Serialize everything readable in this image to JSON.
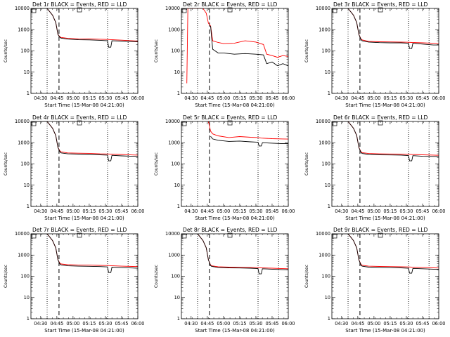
{
  "chart_data": [
    {
      "type": "line",
      "title": "Det 1r BLACK = Events, RED = LLD",
      "xlabel": "Start Time (15-Mar-08 04:21:00)",
      "ylabel": "Counts/sec",
      "yscale": "log",
      "ylim": [
        1,
        10000
      ],
      "xlim": [
        "04:21",
        "06:00"
      ],
      "xticks": [
        "04:30",
        "04:45",
        "05:00",
        "05:15",
        "05:30",
        "05:45",
        "06:00"
      ],
      "yticks": [
        "1",
        "10",
        "100",
        "1000",
        "10000"
      ],
      "legend": "none",
      "colors": {
        "events": "#000000",
        "lld": "#ff0000"
      },
      "series": [
        {
          "name": "BLACK = Events",
          "x": [
            "04:26",
            "04:36",
            "04:41",
            "04:44",
            "04:46",
            "04:48",
            "04:49",
            "04:55",
            "05:05",
            "05:15",
            "05:25",
            "05:32",
            "05:33",
            "05:35",
            "05:36",
            "05:45",
            "05:55",
            "06:00"
          ],
          "y": [
            10000,
            10000,
            4800,
            2200,
            600,
            420,
            400,
            360,
            335,
            330,
            315,
            300,
            150,
            150,
            300,
            290,
            280,
            270
          ]
        },
        {
          "name": "RED = LLD",
          "x": [
            "04:26",
            "04:36",
            "04:41",
            "04:44",
            "04:46",
            "04:48",
            "04:49",
            "04:55",
            "05:05",
            "05:15",
            "05:25",
            "05:32",
            "05:35",
            "05:45",
            "05:55",
            "06:00"
          ],
          "y": [
            10000,
            10000,
            4800,
            2200,
            600,
            450,
            430,
            390,
            370,
            365,
            355,
            345,
            340,
            320,
            300,
            290
          ]
        }
      ]
    },
    {
      "type": "line",
      "title": "Det 2r BLACK = Events, RED = LLD",
      "xlabel": "Start Time (15-Mar-08 04:21:00)",
      "ylabel": "Counts/sec",
      "yscale": "log",
      "ylim": [
        1,
        10000
      ],
      "xlim": [
        "04:21",
        "06:00"
      ],
      "xticks": [
        "04:30",
        "04:45",
        "05:00",
        "05:15",
        "05:30",
        "05:45",
        "06:00"
      ],
      "yticks": [
        "1",
        "10",
        "100",
        "1000",
        "10000"
      ],
      "legend": "none",
      "colors": {
        "events": "#000000",
        "lld": "#ff0000"
      },
      "series": [
        {
          "name": "BLACK = Events",
          "x": [
            "04:48",
            "04:50",
            "04:55",
            "05:00",
            "05:10",
            "05:20",
            "05:30",
            "05:37",
            "05:40",
            "05:45",
            "05:50",
            "05:55",
            "06:00"
          ],
          "y": [
            1500,
            120,
            80,
            80,
            70,
            75,
            70,
            65,
            25,
            30,
            20,
            25,
            20
          ]
        },
        {
          "name": "RED = LLD",
          "x": [
            "04:26",
            "04:27",
            "04:28",
            "04:29",
            "04:36",
            "04:41",
            "04:44",
            "04:46",
            "04:48",
            "04:50",
            "04:55",
            "05:00",
            "05:10",
            "05:20",
            "05:30",
            "05:37",
            "05:40",
            "05:45",
            "05:50",
            "05:55",
            "06:00"
          ],
          "y": [
            3,
            10000,
            10000,
            10000,
            10000,
            10000,
            6000,
            2000,
            1500,
            300,
            250,
            220,
            230,
            300,
            260,
            200,
            70,
            60,
            50,
            60,
            55
          ]
        }
      ]
    },
    {
      "type": "line",
      "title": "Det 3r BLACK = Events, RED = LLD",
      "xlabel": "Start Time (15-Mar-08 04:21:00)",
      "ylabel": "Counts/sec",
      "yscale": "log",
      "ylim": [
        1,
        10000
      ],
      "xlim": [
        "04:21",
        "06:00"
      ],
      "xticks": [
        "04:30",
        "04:45",
        "05:00",
        "05:15",
        "05:30",
        "05:45",
        "06:00"
      ],
      "yticks": [
        "1",
        "10",
        "100",
        "1000",
        "10000"
      ],
      "legend": "none",
      "colors": {
        "events": "#000000",
        "lld": "#ff0000"
      },
      "series": [
        {
          "name": "BLACK = Events",
          "x": [
            "04:26",
            "04:36",
            "04:41",
            "04:44",
            "04:46",
            "04:48",
            "04:49",
            "04:55",
            "05:05",
            "05:15",
            "05:25",
            "05:32",
            "05:33",
            "05:35",
            "05:36",
            "05:45",
            "05:55",
            "06:00"
          ],
          "y": [
            10000,
            10000,
            4800,
            2200,
            600,
            340,
            300,
            260,
            245,
            240,
            240,
            230,
            130,
            130,
            230,
            210,
            190,
            190
          ]
        },
        {
          "name": "RED = LLD",
          "x": [
            "04:26",
            "04:36",
            "04:41",
            "04:44",
            "04:46",
            "04:48",
            "04:49",
            "04:55",
            "05:05",
            "05:15",
            "05:25",
            "05:32",
            "05:35",
            "05:45",
            "05:55",
            "06:00"
          ],
          "y": [
            10000,
            10000,
            4800,
            2200,
            600,
            360,
            330,
            280,
            270,
            265,
            260,
            255,
            250,
            240,
            230,
            220
          ]
        }
      ]
    },
    {
      "type": "line",
      "title": "Det 4r BLACK = Events, RED = LLD",
      "xlabel": "Start Time (15-Mar-08 04:21:00)",
      "ylabel": "Counts/sec",
      "yscale": "log",
      "ylim": [
        1,
        10000
      ],
      "xlim": [
        "04:21",
        "06:00"
      ],
      "xticks": [
        "04:30",
        "04:45",
        "05:00",
        "05:15",
        "05:30",
        "05:45",
        "06:00"
      ],
      "yticks": [
        "1",
        "10",
        "100",
        "1000",
        "10000"
      ],
      "legend": "none",
      "colors": {
        "events": "#000000",
        "lld": "#ff0000"
      },
      "series": [
        {
          "name": "BLACK = Events",
          "x": [
            "04:26",
            "04:36",
            "04:41",
            "04:44",
            "04:46",
            "04:48",
            "04:49",
            "04:55",
            "05:05",
            "05:15",
            "05:25",
            "05:32",
            "05:33",
            "05:35",
            "05:36",
            "05:45",
            "05:55",
            "06:00"
          ],
          "y": [
            10000,
            10000,
            4800,
            2200,
            600,
            360,
            330,
            300,
            290,
            280,
            270,
            260,
            140,
            140,
            255,
            240,
            230,
            230
          ]
        },
        {
          "name": "RED = LLD",
          "x": [
            "04:26",
            "04:36",
            "04:41",
            "04:44",
            "04:46",
            "04:48",
            "04:49",
            "04:55",
            "05:05",
            "05:15",
            "05:25",
            "05:32",
            "05:35",
            "05:45",
            "05:55",
            "06:00"
          ],
          "y": [
            10000,
            10000,
            4800,
            2200,
            600,
            400,
            370,
            330,
            320,
            315,
            300,
            295,
            290,
            280,
            265,
            260
          ]
        }
      ]
    },
    {
      "type": "line",
      "title": "Det 5r BLACK = Events, RED = LLD",
      "xlabel": "Start Time (15-Mar-08 04:21:00)",
      "ylabel": "Counts/sec",
      "yscale": "log",
      "ylim": [
        1,
        10000
      ],
      "xlim": [
        "04:21",
        "06:00"
      ],
      "xticks": [
        "04:30",
        "04:45",
        "05:00",
        "05:15",
        "05:30",
        "05:45",
        "06:00"
      ],
      "yticks": [
        "1",
        "10",
        "100",
        "1000",
        "10000"
      ],
      "legend": "none",
      "colors": {
        "events": "#000000",
        "lld": "#ff0000"
      },
      "series": [
        {
          "name": "BLACK = Events",
          "x": [
            "04:48",
            "04:50",
            "04:55",
            "05:05",
            "05:15",
            "05:25",
            "05:32",
            "05:33",
            "05:35",
            "05:36",
            "05:45",
            "05:55",
            "06:00"
          ],
          "y": [
            2000,
            1500,
            1300,
            1150,
            1200,
            1100,
            1050,
            700,
            700,
            1000,
            950,
            900,
            900
          ]
        },
        {
          "name": "RED = LLD",
          "x": [
            "04:46",
            "04:48",
            "04:50",
            "04:55",
            "05:05",
            "05:15",
            "05:25",
            "05:32",
            "05:35",
            "05:45",
            "05:55",
            "06:00"
          ],
          "y": [
            10000,
            3500,
            2600,
            2100,
            1750,
            1950,
            1800,
            1750,
            1650,
            1550,
            1500,
            1480
          ]
        }
      ]
    },
    {
      "type": "line",
      "title": "Det 6r BLACK = Events, RED = LLD",
      "xlabel": "Start Time (15-Mar-08 04:21:00)",
      "ylabel": "Counts/sec",
      "yscale": "log",
      "ylim": [
        1,
        10000
      ],
      "xlim": [
        "04:21",
        "06:00"
      ],
      "xticks": [
        "04:30",
        "04:45",
        "05:00",
        "05:15",
        "05:30",
        "05:45",
        "06:00"
      ],
      "yticks": [
        "1",
        "10",
        "100",
        "1000",
        "10000"
      ],
      "legend": "none",
      "colors": {
        "events": "#000000",
        "lld": "#ff0000"
      },
      "series": [
        {
          "name": "BLACK = Events",
          "x": [
            "04:26",
            "04:36",
            "04:41",
            "04:44",
            "04:46",
            "04:48",
            "04:49",
            "04:55",
            "05:05",
            "05:15",
            "05:25",
            "05:32",
            "05:33",
            "05:35",
            "05:36",
            "05:45",
            "05:55",
            "06:00"
          ],
          "y": [
            10000,
            10000,
            4800,
            2200,
            600,
            340,
            310,
            280,
            270,
            265,
            260,
            250,
            140,
            140,
            245,
            230,
            225,
            225
          ]
        },
        {
          "name": "RED = LLD",
          "x": [
            "04:26",
            "04:36",
            "04:41",
            "04:44",
            "04:46",
            "04:48",
            "04:49",
            "04:55",
            "05:05",
            "05:15",
            "05:25",
            "05:32",
            "05:35",
            "05:45",
            "05:55",
            "06:00"
          ],
          "y": [
            10000,
            10000,
            4800,
            2200,
            600,
            370,
            340,
            310,
            300,
            295,
            290,
            285,
            280,
            270,
            260,
            255
          ]
        }
      ]
    },
    {
      "type": "line",
      "title": "Det 7r BLACK = Events, RED = LLD",
      "xlabel": "Start Time (15-Mar-08 04:21:00)",
      "ylabel": "Counts/sec",
      "yscale": "log",
      "ylim": [
        1,
        10000
      ],
      "xlim": [
        "04:21",
        "06:00"
      ],
      "xticks": [
        "04:30",
        "04:45",
        "05:00",
        "05:15",
        "05:30",
        "05:45",
        "06:00"
      ],
      "yticks": [
        "1",
        "10",
        "100",
        "1000",
        "10000"
      ],
      "legend": "none",
      "colors": {
        "events": "#000000",
        "lld": "#ff0000"
      },
      "series": [
        {
          "name": "BLACK = Events",
          "x": [
            "04:26",
            "04:36",
            "04:41",
            "04:44",
            "04:46",
            "04:48",
            "04:49",
            "04:55",
            "05:05",
            "05:15",
            "05:25",
            "05:32",
            "05:33",
            "05:35",
            "05:36",
            "05:45",
            "05:55",
            "06:00"
          ],
          "y": [
            10000,
            10000,
            4800,
            2200,
            600,
            360,
            340,
            310,
            300,
            295,
            285,
            275,
            150,
            150,
            270,
            255,
            245,
            240
          ]
        },
        {
          "name": "RED = LLD",
          "x": [
            "04:26",
            "04:36",
            "04:41",
            "04:44",
            "04:46",
            "04:48",
            "04:49",
            "04:55",
            "05:05",
            "05:15",
            "05:25",
            "05:32",
            "05:35",
            "05:45",
            "05:55",
            "06:00"
          ],
          "y": [
            10000,
            10000,
            4800,
            2200,
            600,
            400,
            380,
            350,
            340,
            335,
            325,
            320,
            315,
            300,
            290,
            285
          ]
        }
      ]
    },
    {
      "type": "line",
      "title": "Det 8r BLACK = Events, RED = LLD",
      "xlabel": "Start Time (15-Mar-08 04:21:00)",
      "ylabel": "Counts/sec",
      "yscale": "log",
      "ylim": [
        1,
        10000
      ],
      "xlim": [
        "04:21",
        "06:00"
      ],
      "xticks": [
        "04:30",
        "04:45",
        "05:00",
        "05:15",
        "05:30",
        "05:45",
        "06:00"
      ],
      "yticks": [
        "1",
        "10",
        "100",
        "1000",
        "10000"
      ],
      "legend": "none",
      "colors": {
        "events": "#000000",
        "lld": "#ff0000"
      },
      "series": [
        {
          "name": "BLACK = Events",
          "x": [
            "04:26",
            "04:36",
            "04:41",
            "04:44",
            "04:46",
            "04:48",
            "04:49",
            "04:55",
            "05:05",
            "05:15",
            "05:25",
            "05:32",
            "05:33",
            "05:35",
            "05:36",
            "05:45",
            "05:55",
            "06:00"
          ],
          "y": [
            10000,
            10000,
            4800,
            2200,
            600,
            320,
            290,
            260,
            250,
            245,
            240,
            230,
            130,
            130,
            225,
            215,
            205,
            205
          ]
        },
        {
          "name": "RED = LLD",
          "x": [
            "04:26",
            "04:36",
            "04:41",
            "04:44",
            "04:46",
            "04:48",
            "04:49",
            "04:55",
            "05:05",
            "05:15",
            "05:25",
            "05:32",
            "05:35",
            "05:45",
            "05:55",
            "06:00"
          ],
          "y": [
            10000,
            10000,
            4800,
            2200,
            600,
            340,
            310,
            280,
            270,
            265,
            260,
            255,
            250,
            240,
            230,
            225
          ]
        }
      ]
    },
    {
      "type": "line",
      "title": "Det 9r BLACK = Events, RED = LLD",
      "xlabel": "Start Time (15-Mar-08 04:21:00)",
      "ylabel": "Counts/sec",
      "yscale": "log",
      "ylim": [
        1,
        10000
      ],
      "xlim": [
        "04:21",
        "06:00"
      ],
      "xticks": [
        "04:30",
        "04:45",
        "05:00",
        "05:15",
        "05:30",
        "05:45",
        "06:00"
      ],
      "yticks": [
        "1",
        "10",
        "100",
        "1000",
        "10000"
      ],
      "legend": "none",
      "colors": {
        "events": "#000000",
        "lld": "#ff0000"
      },
      "series": [
        {
          "name": "BLACK = Events",
          "x": [
            "04:26",
            "04:36",
            "04:41",
            "04:44",
            "04:46",
            "04:48",
            "04:49",
            "04:55",
            "05:05",
            "05:15",
            "05:25",
            "05:32",
            "05:33",
            "05:35",
            "05:36",
            "05:45",
            "05:55",
            "06:00"
          ],
          "y": [
            10000,
            10000,
            4800,
            2200,
            600,
            330,
            300,
            270,
            260,
            255,
            250,
            240,
            140,
            140,
            235,
            225,
            215,
            215
          ]
        },
        {
          "name": "RED = LLD",
          "x": [
            "04:26",
            "04:36",
            "04:41",
            "04:44",
            "04:46",
            "04:48",
            "04:49",
            "04:55",
            "05:05",
            "05:15",
            "05:25",
            "05:32",
            "05:35",
            "05:45",
            "05:55",
            "06:00"
          ],
          "y": [
            10000,
            10000,
            4800,
            2200,
            600,
            360,
            330,
            300,
            290,
            285,
            280,
            275,
            270,
            260,
            250,
            245
          ]
        }
      ]
    }
  ],
  "markers": {
    "dotted_times": [
      "04:36",
      "05:32",
      "05:51"
    ],
    "dashed_time": "04:47"
  }
}
